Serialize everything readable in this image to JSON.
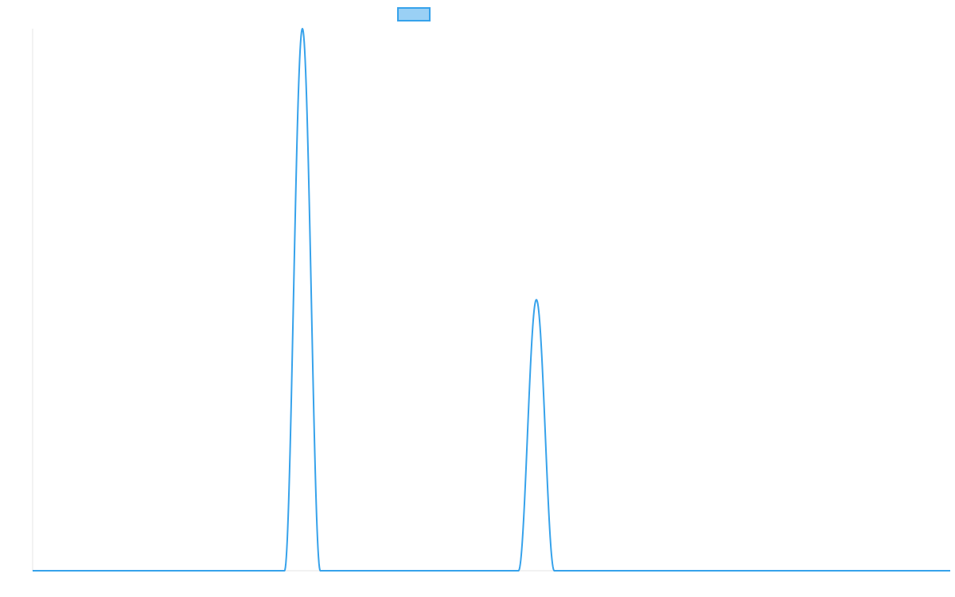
{
  "chart_data": {
    "type": "line",
    "title": "",
    "xlabel": "",
    "ylabel": "",
    "grid": false,
    "legend": {
      "position": "top",
      "swatch_fill": "#9ad0f5",
      "swatch_stroke": "#36a2eb",
      "label": ""
    },
    "xlim": [
      0,
      1000
    ],
    "ylim": [
      0,
      1
    ],
    "series": [
      {
        "color": "#36a2eb",
        "peaks": [
          {
            "center": 294,
            "height": 1.0,
            "half_width": 19.5
          },
          {
            "center": 549,
            "height": 0.5,
            "half_width": 19.5
          }
        ],
        "baseline": 0
      }
    ]
  }
}
